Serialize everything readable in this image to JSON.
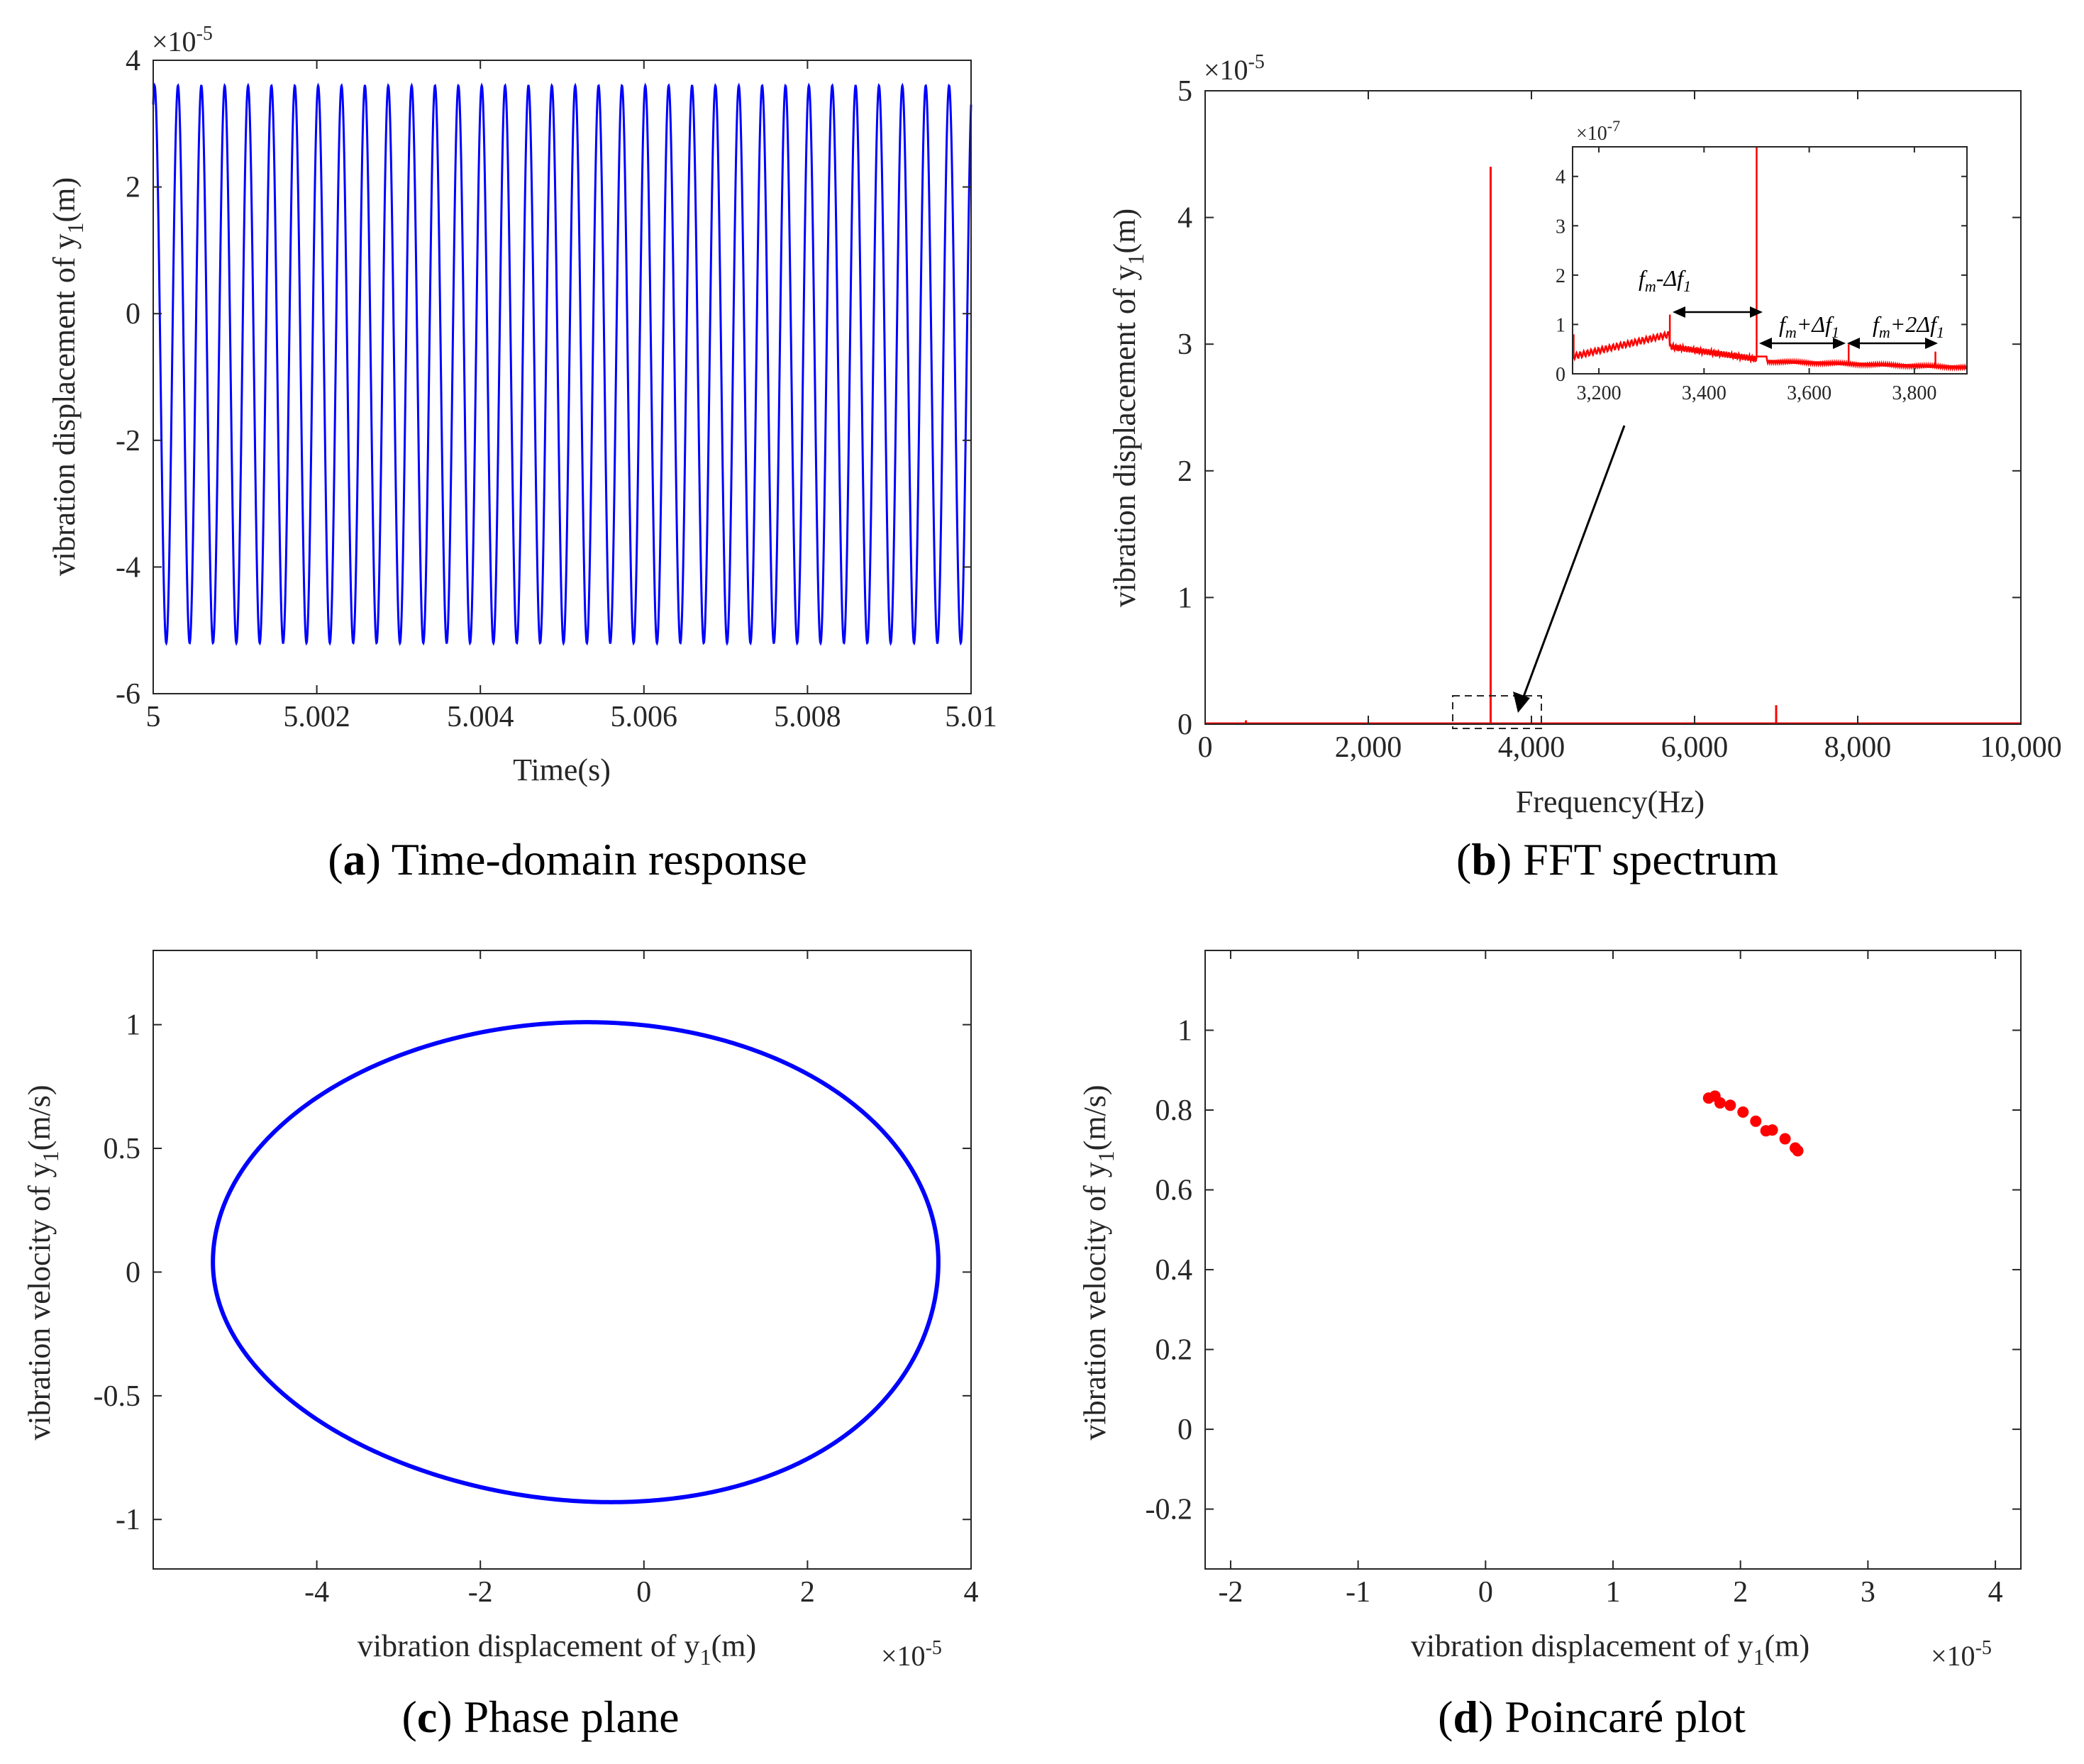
{
  "colors": {
    "series_a": "#0000ff",
    "series_b": "#ff0000",
    "axis": "#262626"
  },
  "chart_data": [
    {
      "id": "a",
      "type": "line",
      "caption_letter": "a",
      "caption_text": " Time-domain response",
      "xlabel": "Time(s)",
      "ylabel_prefix": "vibration displacement of y",
      "ylabel_sub": "1",
      "ylabel_unit": "(m)",
      "y_exponent_base": "×10",
      "y_exponent_power": "-5",
      "xlim": [
        5,
        5.01
      ],
      "ylim": [
        -6,
        4
      ],
      "xticks": [
        5,
        5.002,
        5.004,
        5.006,
        5.008,
        5.01
      ],
      "xtick_labels": [
        "5",
        "5.002",
        "5.004",
        "5.006",
        "5.008",
        "5.01"
      ],
      "yticks": [
        -6,
        -4,
        -2,
        0,
        2,
        4
      ],
      "ytick_labels": [
        "-6",
        "-4",
        "-2",
        "0",
        "2",
        "4"
      ],
      "series": [
        {
          "name": "y1",
          "cycles": 35,
          "max": 3.6,
          "min": -5.2,
          "t_start": 5,
          "t_end": 5.01
        }
      ]
    },
    {
      "id": "b",
      "type": "line",
      "caption_letter": "b",
      "caption_text": " FFT spectrum",
      "xlabel": "Frequency(Hz)",
      "ylabel_prefix": "vibration displacement of y",
      "ylabel_sub": "1",
      "ylabel_unit": "(m)",
      "y_exponent_base": "×10",
      "y_exponent_power": "-5",
      "xlim": [
        0,
        10000
      ],
      "ylim": [
        0,
        5
      ],
      "xticks": [
        0,
        2000,
        4000,
        6000,
        8000,
        10000
      ],
      "xtick_labels": [
        "0",
        "2,000",
        "4,000",
        "6,000",
        "8,000",
        "10,000"
      ],
      "yticks": [
        0,
        1,
        2,
        3,
        4,
        5
      ],
      "ytick_labels": [
        "0",
        "1",
        "2",
        "3",
        "4",
        "5"
      ],
      "peaks": [
        {
          "freq": 500,
          "value": 0.03
        },
        {
          "freq": 3500,
          "value": 4.4
        },
        {
          "freq": 7000,
          "value": 0.15
        }
      ],
      "zoom_box": {
        "x": [
          3000,
          4000
        ],
        "y": [
          0,
          0.2
        ]
      },
      "inset": {
        "xlim": [
          3150,
          3900
        ],
        "ylim": [
          0,
          4.6
        ],
        "xticks": [
          3200,
          3400,
          3600,
          3800
        ],
        "xtick_labels": [
          "3,200",
          "3,400",
          "3,600",
          "3,800"
        ],
        "yticks": [
          0,
          1,
          2,
          3,
          4
        ],
        "ytick_labels": [
          "0",
          "1",
          "2",
          "3",
          "4"
        ],
        "y_exponent_base": "×10",
        "y_exponent_power": "-7",
        "peaks": [
          {
            "freq": 3335,
            "value": 1.2
          },
          {
            "freq": 3500,
            "value": 4.6
          },
          {
            "freq": 3675,
            "value": 0.6
          },
          {
            "freq": 3840,
            "value": 0.45
          }
        ],
        "annotations": [
          {
            "base": "f",
            "sub1": "m",
            "mid": "-Δf",
            "sub2": "1",
            "tail": ""
          },
          {
            "base": "f",
            "sub1": "m",
            "mid": "+Δf",
            "sub2": "1",
            "tail": ""
          },
          {
            "base": "f",
            "sub1": "m",
            "mid": "+2Δf",
            "sub2": "1",
            "tail": ""
          }
        ]
      }
    },
    {
      "id": "c",
      "type": "line",
      "caption_letter": "c",
      "caption_text": " Phase plane",
      "xlabel_prefix": "vibration displacement of y",
      "xlabel_sub": "1",
      "xlabel_unit": "(m)",
      "ylabel_prefix": "vibration velocity of y",
      "ylabel_sub": "1",
      "ylabel_unit": "(m/s)",
      "x_exponent_base": "×10",
      "x_exponent_power": "-5",
      "xlim": [
        -6,
        4
      ],
      "ylim": [
        -1.2,
        1.3
      ],
      "xticks": [
        -4,
        -2,
        0,
        2,
        4
      ],
      "xtick_labels": [
        "-4",
        "-2",
        "0",
        "2",
        "4"
      ],
      "yticks": [
        -1,
        -0.5,
        0,
        0.5,
        1
      ],
      "ytick_labels": [
        "-1",
        "-0.5",
        "0",
        "0.5",
        "1"
      ],
      "series": [
        {
          "name": "orbit",
          "x_min": -5.27,
          "x_max": 3.6,
          "y_min": -0.93,
          "y_max": 1.01,
          "x_at_ymax": -0.7,
          "x_at_ymin": -0.4
        }
      ]
    },
    {
      "id": "d",
      "type": "scatter",
      "caption_letter": "d",
      "caption_text": " Poincaré plot",
      "xlabel_prefix": "vibration displacement of y",
      "xlabel_sub": "1",
      "xlabel_unit": "(m)",
      "ylabel_prefix": "vibration velocity of y",
      "ylabel_sub": "1",
      "ylabel_unit": "(m/s)",
      "x_exponent_base": "×10",
      "x_exponent_power": "-5",
      "xlim": [
        -2.2,
        4.2
      ],
      "ylim": [
        -0.35,
        1.2
      ],
      "xticks": [
        -2,
        -1,
        0,
        1,
        2,
        3,
        4
      ],
      "xtick_labels": [
        "-2",
        "-1",
        "0",
        "1",
        "2",
        "3",
        "4"
      ],
      "yticks": [
        -0.2,
        0,
        0.2,
        0.4,
        0.6,
        0.8,
        1
      ],
      "ytick_labels": [
        "-0.2",
        "0",
        "0.2",
        "0.4",
        "0.6",
        "0.8",
        "1"
      ],
      "points": [
        {
          "x": 1.75,
          "y": 0.83
        },
        {
          "x": 1.8,
          "y": 0.835
        },
        {
          "x": 1.84,
          "y": 0.818
        },
        {
          "x": 1.92,
          "y": 0.812
        },
        {
          "x": 2.02,
          "y": 0.795
        },
        {
          "x": 2.12,
          "y": 0.772
        },
        {
          "x": 2.2,
          "y": 0.748
        },
        {
          "x": 2.25,
          "y": 0.75
        },
        {
          "x": 2.35,
          "y": 0.728
        },
        {
          "x": 2.43,
          "y": 0.705
        },
        {
          "x": 2.45,
          "y": 0.698
        }
      ]
    }
  ]
}
